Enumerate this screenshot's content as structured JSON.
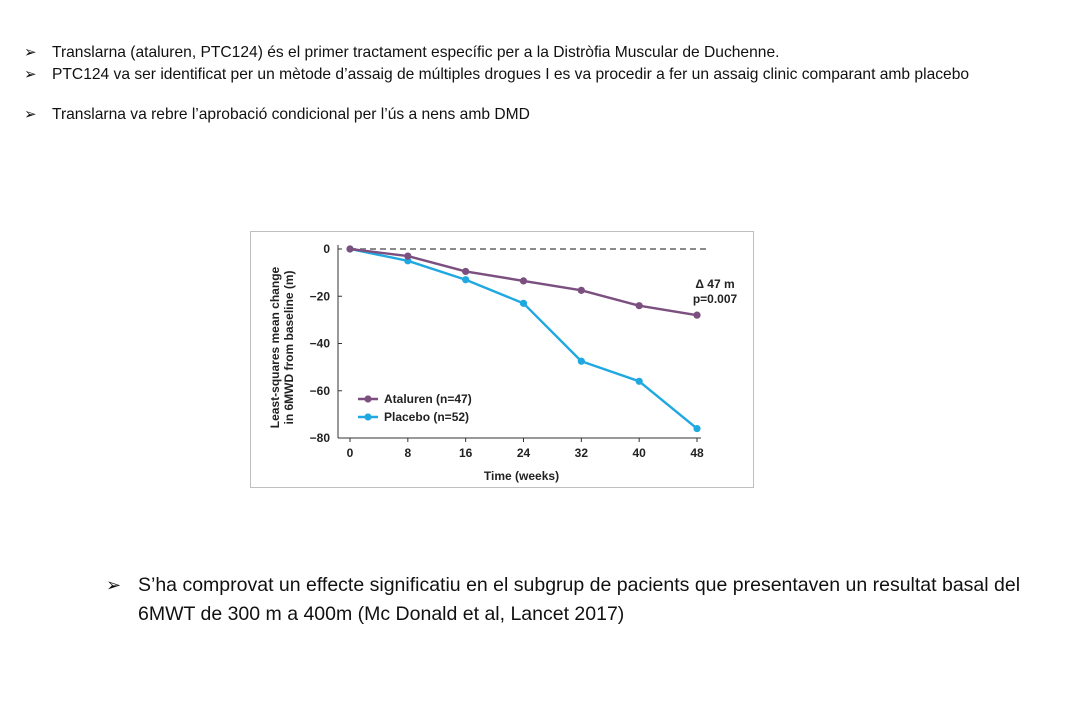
{
  "bullet_symbol": "➢",
  "top_bullets": [
    "Translarna (ataluren, PTC124) és el primer tractament específic per a la Distròfia Muscular de Duchenne.",
    "PTC124 va ser identificat per un mètode d’assaig de múltiples drogues I es va procedir a fer un assaig clinic comparant amb placebo",
    "Translarna va rebre l’aprobació condicional per l’ús a nens amb DMD"
  ],
  "bottom_bullet": "S’ha comprovat un effecte significatiu en el subgrup de pacients que presentaven un resultat basal del 6MWT de 300 m a 400m    (Mc Donald et al, Lancet 2017)",
  "chart_data": {
    "type": "line",
    "xlabel": "Time (weeks)",
    "ylabel_lines": [
      "Least-squares mean change",
      "in 6MWD from baseline (m)"
    ],
    "x": [
      0,
      8,
      16,
      24,
      32,
      40,
      48
    ],
    "xlim": [
      0,
      48
    ],
    "ylim": [
      -80,
      0
    ],
    "yticks": [
      0,
      -20,
      -40,
      -60,
      -80
    ],
    "series": [
      {
        "name": "Ataluren (n=47)",
        "color": "#7b4f7f",
        "values": [
          0,
          -3,
          -9.5,
          -13.5,
          -17.5,
          -24,
          -28
        ]
      },
      {
        "name": "Placebo (n=52)",
        "color": "#20a8e0",
        "values": [
          0,
          -5,
          -13,
          -23,
          -47.5,
          -56,
          -76
        ]
      }
    ],
    "reference_line": {
      "y": 0,
      "style": "dashed",
      "color": "#8a8a8a"
    },
    "annotation": [
      "Δ 47 m",
      "p=0.007"
    ],
    "legend_position": "bottom-left",
    "grid": false
  }
}
